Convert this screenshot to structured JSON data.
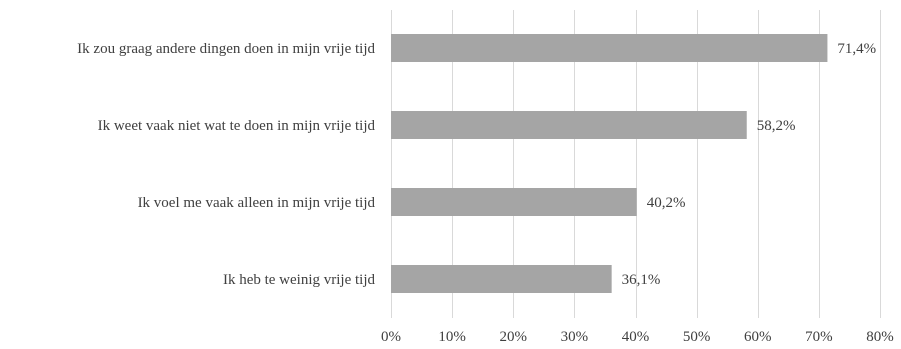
{
  "chart_data": {
    "type": "bar",
    "orientation": "horizontal",
    "categories": [
      "Ik zou graag andere dingen doen in mijn vrije tijd",
      "Ik weet vaak niet wat te doen in mijn vrije tijd",
      "Ik voel me vaak alleen in mijn vrije tijd",
      "Ik heb te weinig vrije tijd"
    ],
    "values": [
      71.4,
      58.2,
      40.2,
      36.1
    ],
    "value_labels": [
      "71,4%",
      "58,2%",
      "40,2%",
      "36,1%"
    ],
    "xlim": [
      0,
      80
    ],
    "xticks": [
      0,
      10,
      20,
      30,
      40,
      50,
      60,
      70,
      80
    ],
    "xtick_labels": [
      "0%",
      "10%",
      "20%",
      "30%",
      "40%",
      "50%",
      "60%",
      "70%",
      "80%"
    ],
    "title": "",
    "xlabel": "",
    "ylabel": "",
    "grid": true,
    "legend": "none",
    "bar_color": "#a5a5a5",
    "grid_color": "#d9d9d9",
    "text_color": "#404040"
  }
}
